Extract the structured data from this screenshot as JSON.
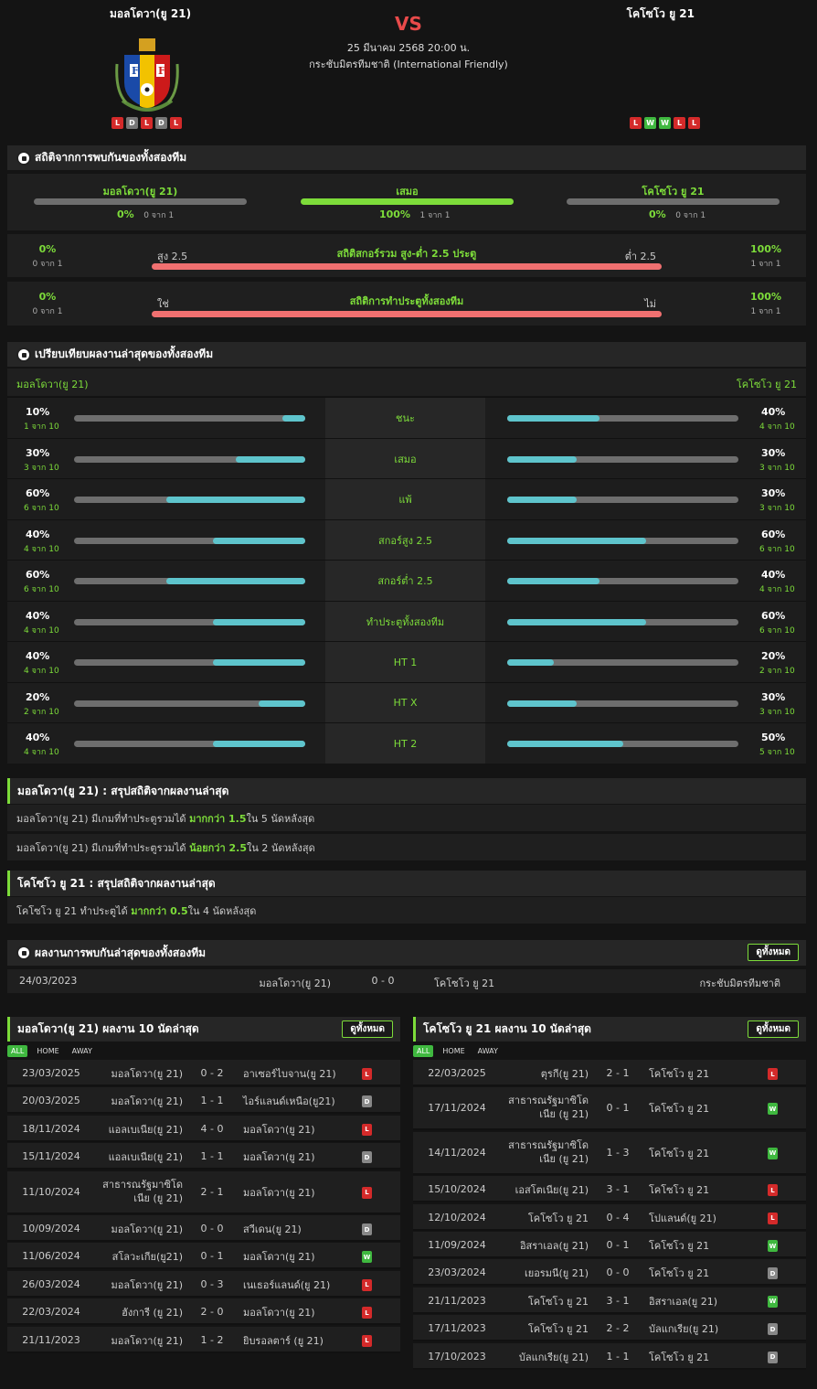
{
  "header": {
    "home_team": "มอลโดวา(ยู 21)",
    "away_team": "โคโซโว ยู 21",
    "vs": "VS",
    "datetime": "25 มีนาคม 2568 20:00 น.",
    "competition": "กระชับมิตรทีมชาติ (International Friendly)",
    "home_form": [
      "L",
      "D",
      "L",
      "D",
      "L"
    ],
    "away_form": [
      "L",
      "W",
      "W",
      "L",
      "L"
    ],
    "logo_text_left": "F",
    "logo_text_right": "F"
  },
  "h2h_stats": {
    "title": "สถิติจากการพบกันของทั้งสองทีม",
    "home_label": "มอลโดวา(ยู 21)",
    "draw_label": "เสมอ",
    "away_label": "โคโซโว ยู 21",
    "home_pct": "0%",
    "home_sub": "0 จาก 1",
    "draw_pct": "100%",
    "draw_sub": "1 จาก 1",
    "away_pct": "0%",
    "away_sub": "0 จาก 1",
    "ou": {
      "left_pct": "0%",
      "left_sub": "0 จาก 1",
      "left_label": "สูง 2.5",
      "title": "สถิติสกอร์รวม สูง-ต่ำ 2.5 ประตู",
      "right_label": "ต่ำ 2.5",
      "right_pct": "100%",
      "right_sub": "1 จาก 1"
    },
    "btts": {
      "left_pct": "0%",
      "left_sub": "0 จาก 1",
      "left_label": "ใช่",
      "title": "สถิติการทำประตูทั้งสองทีม",
      "right_label": "ไม่",
      "right_pct": "100%",
      "right_sub": "1 จาก 1"
    }
  },
  "compare": {
    "title": "เปรียบเทียบผลงานล่าสุดของทั้งสองทีม",
    "home_label": "มอลโดวา(ยู 21)",
    "away_label": "โคโซโว ยู 21",
    "rows": [
      {
        "label": "ชนะ",
        "lp": "10%",
        "ls": "1 จาก 10",
        "lv": 10,
        "rp": "40%",
        "rs": "4 จาก 10",
        "rv": 40
      },
      {
        "label": "เสมอ",
        "lp": "30%",
        "ls": "3 จาก 10",
        "lv": 30,
        "rp": "30%",
        "rs": "3 จาก 10",
        "rv": 30
      },
      {
        "label": "แพ้",
        "lp": "60%",
        "ls": "6 จาก 10",
        "lv": 60,
        "rp": "30%",
        "rs": "3 จาก 10",
        "rv": 30
      },
      {
        "label": "สกอร์สูง 2.5",
        "lp": "40%",
        "ls": "4 จาก 10",
        "lv": 40,
        "rp": "60%",
        "rs": "6 จาก 10",
        "rv": 60
      },
      {
        "label": "สกอร์ต่ำ 2.5",
        "lp": "60%",
        "ls": "6 จาก 10",
        "lv": 60,
        "rp": "40%",
        "rs": "4 จาก 10",
        "rv": 40
      },
      {
        "label": "ทำประตูทั้งสองทีม",
        "lp": "40%",
        "ls": "4 จาก 10",
        "lv": 40,
        "rp": "60%",
        "rs": "6 จาก 10",
        "rv": 60
      },
      {
        "label": "HT 1",
        "lp": "40%",
        "ls": "4 จาก 10",
        "lv": 40,
        "rp": "20%",
        "rs": "2 จาก 10",
        "rv": 20
      },
      {
        "label": "HT X",
        "lp": "20%",
        "ls": "2 จาก 10",
        "lv": 20,
        "rp": "30%",
        "rs": "3 จาก 10",
        "rv": 30
      },
      {
        "label": "HT 2",
        "lp": "40%",
        "ls": "4 จาก 10",
        "lv": 40,
        "rp": "50%",
        "rs": "5 จาก 10",
        "rv": 50
      }
    ]
  },
  "home_summary": {
    "title": "มอลโดวา(ยู 21) : สรุปสถิติจากผลงานล่าสุด",
    "line1": {
      "a": "มอลโดวา(ยู 21)  มีเกมที่ทำประตูรวมได้ ",
      "b": "มากกว่า  1.5",
      "c": "  ใน 5 นัดหลังสุด"
    },
    "line2": {
      "a": "มอลโดวา(ยู 21)  มีเกมที่ทำประตูรวมได้ ",
      "b": "น้อยกว่า  2.5",
      "c": "  ใน 2 นัดหลังสุด"
    }
  },
  "away_summary": {
    "title": "โคโซโว ยู 21 : สรุปสถิติจากผลงานล่าสุด",
    "line1": {
      "a": "โคโซโว ยู 21  ทำประตูได้ ",
      "b": "มากกว่า  0.5",
      "c": "  ใน 4 นัดหลังสุด"
    }
  },
  "h2h_last": {
    "title": "ผลงานการพบกันล่าสุดของทั้งสองทีม",
    "button": "ดูทั้งหมด",
    "date": "24/03/2023",
    "home": "มอลโดวา(ยู 21)",
    "score": "0 - 0",
    "away": "โคโซโว ยู 21",
    "comp": "กระชับมิตรทีมชาติ"
  },
  "home_last10": {
    "title": "มอลโดวา(ยู 21) ผลงาน 10 นัดล่าสุด",
    "button": "ดูทั้งหมด",
    "tabs": [
      "ALL",
      "HOME",
      "AWAY"
    ],
    "matches": [
      {
        "d": "23/03/2025",
        "h": "มอลโดวา(ยู 21)",
        "s": "0 - 2",
        "a": "อาเซอร์ไบจาน(ยู 21)",
        "r": "L"
      },
      {
        "d": "20/03/2025",
        "h": "มอลโดวา(ยู 21)",
        "s": "1 - 1",
        "a": "ไอร์แลนด์เหนือ(ยู21)",
        "r": "D"
      },
      {
        "d": "18/11/2024",
        "h": "แอลเบเนีย(ยู 21)",
        "s": "4 - 0",
        "a": "มอลโดวา(ยู 21)",
        "r": "L"
      },
      {
        "d": "15/11/2024",
        "h": "แอลเบเนีย(ยู 21)",
        "s": "1 - 1",
        "a": "มอลโดวา(ยู 21)",
        "r": "D"
      },
      {
        "d": "11/10/2024",
        "h": "สาธารณรัฐมาซิโดเนีย (ยู 21)",
        "s": "2 - 1",
        "a": "มอลโดวา(ยู 21)",
        "r": "L",
        "tall": true
      },
      {
        "d": "10/09/2024",
        "h": "มอลโดวา(ยู 21)",
        "s": "0 - 0",
        "a": "สวีเดน(ยู 21)",
        "r": "D"
      },
      {
        "d": "11/06/2024",
        "h": "สโลวะเกีย(ยู21)",
        "s": "0 - 1",
        "a": "มอลโดวา(ยู 21)",
        "r": "W"
      },
      {
        "d": "26/03/2024",
        "h": "มอลโดวา(ยู 21)",
        "s": "0 - 3",
        "a": "เนเธอร์แลนด์(ยู 21)",
        "r": "L"
      },
      {
        "d": "22/03/2024",
        "h": "ฮังการี (ยู 21)",
        "s": "2 - 0",
        "a": "มอลโดวา(ยู 21)",
        "r": "L"
      },
      {
        "d": "21/11/2023",
        "h": "มอลโดวา(ยู 21)",
        "s": "1 - 2",
        "a": "ยิบรอลตาร์ (ยู 21)",
        "r": "L"
      }
    ]
  },
  "away_last10": {
    "title": "โคโซโว ยู 21 ผลงาน 10 นัดล่าสุด",
    "button": "ดูทั้งหมด",
    "tabs": [
      "ALL",
      "HOME",
      "AWAY"
    ],
    "matches": [
      {
        "d": "22/03/2025",
        "h": "ตุรกี(ยู 21)",
        "s": "2 - 1",
        "a": "โคโซโว ยู 21",
        "r": "L"
      },
      {
        "d": "17/11/2024",
        "h": "สาธารณรัฐมาซิโดเนีย (ยู 21)",
        "s": "0 - 1",
        "a": "โคโซโว ยู 21",
        "r": "W",
        "tall": true
      },
      {
        "d": "14/11/2024",
        "h": "สาธารณรัฐมาซิโดเนีย (ยู 21)",
        "s": "1 - 3",
        "a": "โคโซโว ยู 21",
        "r": "W",
        "tall": true
      },
      {
        "d": "15/10/2024",
        "h": "เอสโตเนีย(ยู 21)",
        "s": "3 - 1",
        "a": "โคโซโว ยู 21",
        "r": "L"
      },
      {
        "d": "12/10/2024",
        "h": "โคโซโว ยู 21",
        "s": "0 - 4",
        "a": "โปแลนด์(ยู 21)",
        "r": "L"
      },
      {
        "d": "11/09/2024",
        "h": "อิสราเอล(ยู 21)",
        "s": "0 - 1",
        "a": "โคโซโว ยู 21",
        "r": "W"
      },
      {
        "d": "23/03/2024",
        "h": "เยอรมนี(ยู 21)",
        "s": "0 - 0",
        "a": "โคโซโว ยู 21",
        "r": "D"
      },
      {
        "d": "21/11/2023",
        "h": "โคโซโว ยู 21",
        "s": "3 - 1",
        "a": "อิสราเอล(ยู 21)",
        "r": "W"
      },
      {
        "d": "17/11/2023",
        "h": "โคโซโว ยู 21",
        "s": "2 - 2",
        "a": "บัลแกเรีย(ยู 21)",
        "r": "D"
      },
      {
        "d": "17/10/2023",
        "h": "บัลแกเรีย(ยู 21)",
        "s": "1 - 1",
        "a": "โคโซโว ยู 21",
        "r": "D"
      }
    ]
  },
  "colors": {
    "accent": "#7ddc3a",
    "bar_fill": "#5ec4cc",
    "bar_red": "#f07070",
    "loss": "#d42a2a",
    "win": "#3fb83f",
    "draw": "#777777"
  }
}
